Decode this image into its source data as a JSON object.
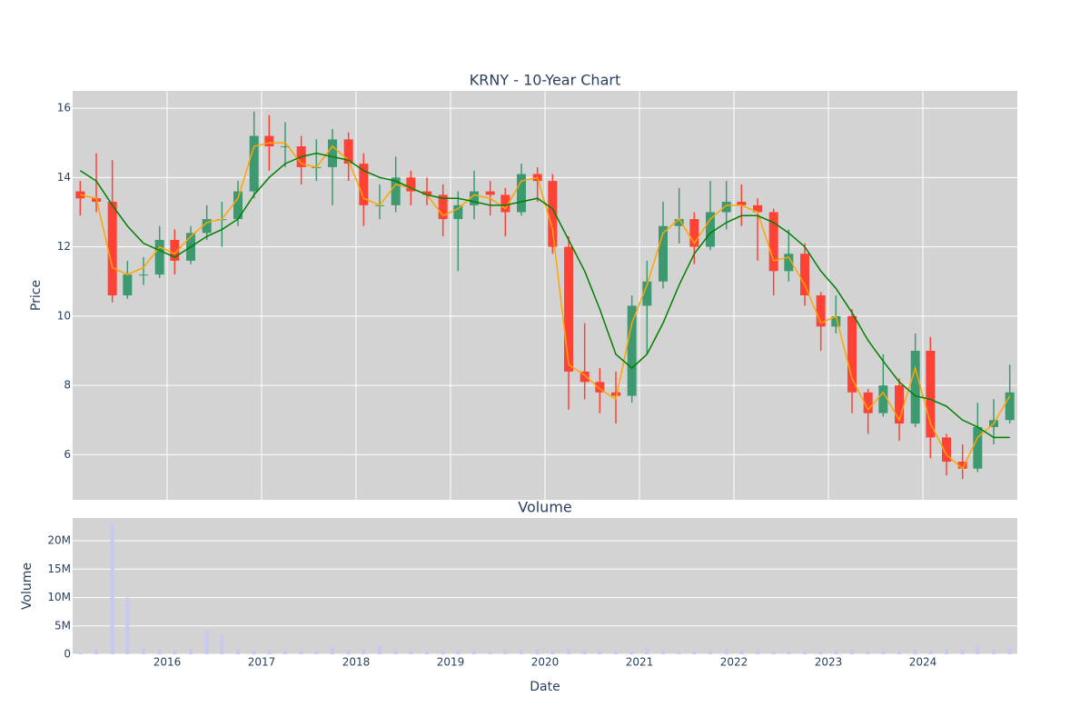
{
  "chart_data": [
    {
      "type": "candlestick",
      "title": "KRNY - 10-Year Chart",
      "ylabel": "Price",
      "x": [
        2015.08,
        2015.25,
        2015.42,
        2015.58,
        2015.75,
        2015.92,
        2016.08,
        2016.25,
        2016.42,
        2016.58,
        2016.75,
        2016.92,
        2017.08,
        2017.25,
        2017.42,
        2017.58,
        2017.75,
        2017.92,
        2018.08,
        2018.25,
        2018.42,
        2018.58,
        2018.75,
        2018.92,
        2019.08,
        2019.25,
        2019.42,
        2019.58,
        2019.75,
        2019.92,
        2020.08,
        2020.25,
        2020.42,
        2020.58,
        2020.75,
        2020.92,
        2021.08,
        2021.25,
        2021.42,
        2021.58,
        2021.75,
        2021.92,
        2022.08,
        2022.25,
        2022.42,
        2022.58,
        2022.75,
        2022.92,
        2023.08,
        2023.25,
        2023.42,
        2023.58,
        2023.75,
        2023.92,
        2024.08,
        2024.25,
        2024.42,
        2024.58,
        2024.75,
        2024.92
      ],
      "open": [
        13.6,
        13.4,
        13.3,
        10.6,
        11.2,
        11.2,
        12.2,
        11.6,
        12.4,
        12.8,
        12.8,
        13.6,
        15.2,
        14.9,
        14.9,
        14.3,
        14.3,
        15.1,
        14.4,
        13.2,
        13.2,
        14.0,
        13.6,
        13.5,
        12.8,
        13.2,
        13.6,
        13.5,
        13.0,
        14.1,
        13.9,
        12.0,
        8.4,
        8.1,
        7.8,
        7.7,
        10.3,
        11.0,
        12.6,
        12.8,
        12.0,
        13.0,
        13.3,
        13.2,
        13.0,
        11.3,
        11.8,
        10.6,
        9.7,
        10.0,
        7.8,
        7.2,
        8.0,
        6.9,
        9.0,
        6.5,
        5.8,
        5.6,
        6.8,
        7.0
      ],
      "high": [
        13.9,
        14.7,
        14.5,
        11.6,
        11.7,
        12.6,
        12.5,
        12.6,
        13.2,
        13.3,
        13.9,
        15.9,
        15.8,
        15.6,
        15.2,
        15.1,
        15.4,
        15.3,
        14.7,
        13.8,
        14.6,
        14.2,
        14.0,
        13.8,
        13.6,
        14.2,
        13.9,
        13.7,
        14.4,
        14.3,
        14.1,
        12.3,
        9.8,
        8.5,
        8.4,
        10.6,
        11.6,
        13.3,
        13.7,
        13.0,
        13.9,
        13.9,
        13.8,
        13.4,
        13.1,
        12.5,
        12.1,
        10.7,
        10.6,
        10.2,
        7.9,
        8.9,
        8.2,
        9.5,
        9.4,
        6.6,
        6.3,
        7.5,
        7.6,
        8.6
      ],
      "low": [
        12.9,
        13.0,
        10.4,
        10.5,
        10.9,
        11.1,
        11.2,
        11.5,
        12.2,
        12.0,
        12.6,
        13.4,
        14.2,
        14.3,
        13.8,
        13.9,
        13.2,
        13.9,
        12.6,
        12.8,
        13.0,
        13.2,
        13.2,
        12.3,
        11.3,
        12.8,
        12.9,
        12.3,
        12.9,
        13.3,
        11.8,
        7.3,
        7.6,
        7.2,
        6.9,
        7.5,
        8.9,
        10.8,
        12.1,
        11.5,
        11.9,
        12.5,
        12.6,
        11.6,
        10.6,
        11.0,
        10.3,
        9.0,
        9.5,
        7.2,
        6.6,
        7.1,
        6.4,
        6.8,
        5.9,
        5.4,
        5.3,
        5.5,
        6.3,
        6.9
      ],
      "close": [
        13.4,
        13.3,
        10.6,
        11.2,
        11.2,
        12.2,
        11.6,
        12.4,
        12.8,
        12.8,
        13.6,
        15.2,
        14.9,
        14.9,
        14.3,
        14.3,
        15.1,
        14.4,
        13.2,
        13.2,
        14.0,
        13.6,
        13.5,
        12.8,
        13.2,
        13.6,
        13.5,
        13.0,
        14.1,
        13.9,
        12.0,
        8.4,
        8.1,
        7.8,
        7.7,
        10.3,
        11.0,
        12.6,
        12.8,
        12.0,
        13.0,
        13.3,
        13.2,
        13.0,
        11.3,
        11.8,
        10.6,
        9.7,
        10.0,
        7.8,
        7.2,
        8.0,
        6.9,
        9.0,
        6.5,
        5.8,
        5.6,
        6.8,
        7.0,
        7.8
      ],
      "increasing_color": "#3d9970",
      "decreasing_color": "#ff4136",
      "ma_lines": [
        {
          "color": "orange",
          "values": [
            13.5,
            13.4,
            11.4,
            11.2,
            11.4,
            12.0,
            11.8,
            12.3,
            12.7,
            12.8,
            13.4,
            14.9,
            15.0,
            15.0,
            14.4,
            14.3,
            14.9,
            14.5,
            13.4,
            13.2,
            13.8,
            13.7,
            13.5,
            12.9,
            13.1,
            13.5,
            13.4,
            13.1,
            13.9,
            14.0,
            12.5,
            8.6,
            8.3,
            7.9,
            7.6,
            9.8,
            10.9,
            12.4,
            12.8,
            12.1,
            12.8,
            13.2,
            13.2,
            13.0,
            11.6,
            11.7,
            10.9,
            9.8,
            10.0,
            8.2,
            7.3,
            7.8,
            7.0,
            8.5,
            6.9,
            6.0,
            5.6,
            6.5,
            6.9,
            7.7
          ]
        },
        {
          "color": "green",
          "values": [
            14.2,
            13.9,
            13.2,
            12.6,
            12.1,
            11.9,
            11.7,
            12.0,
            12.3,
            12.5,
            12.8,
            13.5,
            14.0,
            14.4,
            14.6,
            14.7,
            14.6,
            14.5,
            14.2,
            14.0,
            13.9,
            13.7,
            13.5,
            13.4,
            13.4,
            13.3,
            13.2,
            13.2,
            13.3,
            13.4,
            13.1,
            12.2,
            11.3,
            10.2,
            8.9,
            8.5,
            8.9,
            9.8,
            10.9,
            11.8,
            12.4,
            12.7,
            12.9,
            12.9,
            12.7,
            12.4,
            12.0,
            11.3,
            10.8,
            10.1,
            9.3,
            8.7,
            8.1,
            7.7,
            7.6,
            7.4,
            7.0,
            6.8,
            6.5,
            6.5
          ]
        }
      ],
      "xlim": [
        2015.0,
        2025.0
      ],
      "xticks": [
        2016,
        2017,
        2018,
        2019,
        2020,
        2021,
        2022,
        2023,
        2024
      ],
      "ylim": [
        4.7,
        16.5
      ],
      "yticks": [
        6,
        8,
        10,
        12,
        14,
        16
      ],
      "grid": true
    },
    {
      "type": "bar",
      "title": "Volume",
      "ylabel": "Volume",
      "xlabel": "Date",
      "color": "#c8c8f0",
      "x": [
        2015.08,
        2015.25,
        2015.42,
        2015.58,
        2015.75,
        2015.92,
        2016.08,
        2016.25,
        2016.42,
        2016.58,
        2016.75,
        2016.92,
        2017.08,
        2017.25,
        2017.42,
        2017.58,
        2017.75,
        2017.92,
        2018.08,
        2018.25,
        2018.42,
        2018.58,
        2018.75,
        2018.92,
        2019.08,
        2019.25,
        2019.42,
        2019.58,
        2019.75,
        2019.92,
        2020.08,
        2020.25,
        2020.42,
        2020.58,
        2020.75,
        2020.92,
        2021.08,
        2021.25,
        2021.42,
        2021.58,
        2021.75,
        2021.92,
        2022.08,
        2022.25,
        2022.42,
        2022.58,
        2022.75,
        2022.92,
        2023.08,
        2023.25,
        2023.42,
        2023.58,
        2023.75,
        2023.92,
        2024.08,
        2024.25,
        2024.42,
        2024.58,
        2024.75,
        2024.92
      ],
      "values": [
        400000,
        1000000,
        23000000,
        10000000,
        1200000,
        800000,
        700000,
        900000,
        4200000,
        3500000,
        900000,
        600000,
        700000,
        600000,
        600000,
        500000,
        1200000,
        700000,
        900000,
        1600000,
        700000,
        600000,
        500000,
        600000,
        700000,
        600000,
        500000,
        600000,
        800000,
        900000,
        600000,
        1200000,
        700000,
        600000,
        500000,
        500000,
        1300000,
        600000,
        500000,
        500000,
        600000,
        1000000,
        700000,
        600000,
        500000,
        500000,
        500000,
        500000,
        800000,
        700000,
        500000,
        600000,
        500000,
        800000,
        700000,
        900000,
        800000,
        1600000,
        700000,
        1200000
      ],
      "xlim": [
        2015.0,
        2025.0
      ],
      "xticks": [
        2016,
        2017,
        2018,
        2019,
        2020,
        2021,
        2022,
        2023,
        2024
      ],
      "ylim": [
        0,
        24000000
      ],
      "yticks": [
        0,
        {
          "value": 5000000,
          "label": "5M"
        },
        {
          "value": 10000000,
          "label": "10M"
        },
        {
          "value": 15000000,
          "label": "15M"
        },
        {
          "value": 20000000,
          "label": "20M"
        }
      ],
      "grid": true
    }
  ]
}
